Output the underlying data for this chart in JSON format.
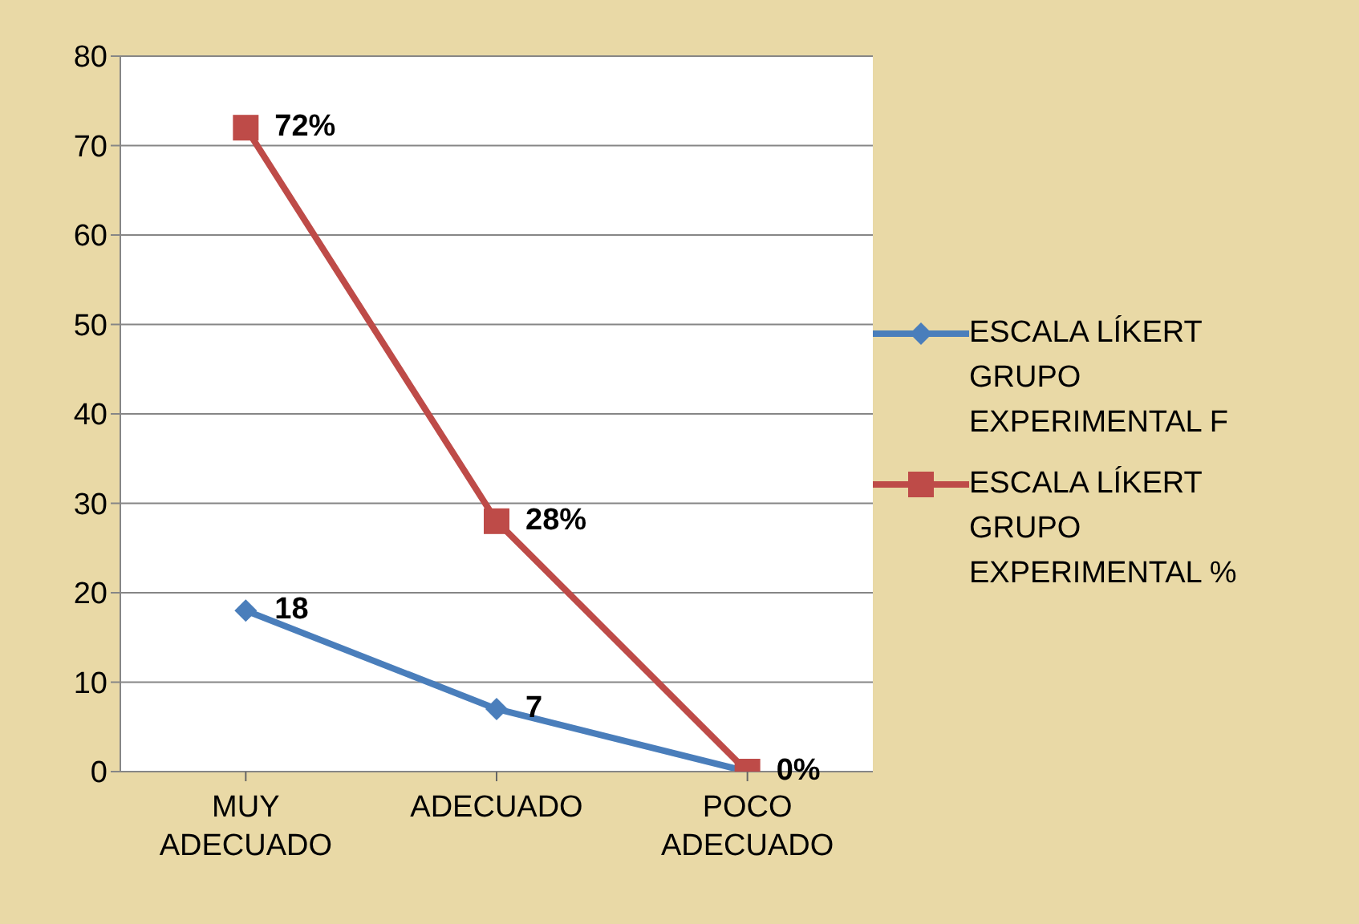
{
  "chart_data": {
    "type": "line",
    "categories": [
      "MUY ADECUADO",
      "ADECUADO",
      "POCO ADECUADO"
    ],
    "series": [
      {
        "name": "ESCALA LÍKERT GRUPO EXPERIMENTAL  F",
        "color": "#4a7ebb",
        "marker": "diamond",
        "values": [
          18,
          7,
          0
        ],
        "value_labels": [
          "18",
          "7",
          null
        ]
      },
      {
        "name": "ESCALA LÍKERT GRUPO EXPERIMENTAL  %",
        "color": "#be4b48",
        "marker": "square",
        "values": [
          72,
          28,
          0
        ],
        "value_labels": [
          "72%",
          "28%",
          "0%"
        ]
      }
    ],
    "ylim": [
      0,
      80
    ],
    "yticks": [
      0,
      10,
      20,
      30,
      40,
      50,
      60,
      70,
      80
    ],
    "grid": "y",
    "legend": "right"
  }
}
